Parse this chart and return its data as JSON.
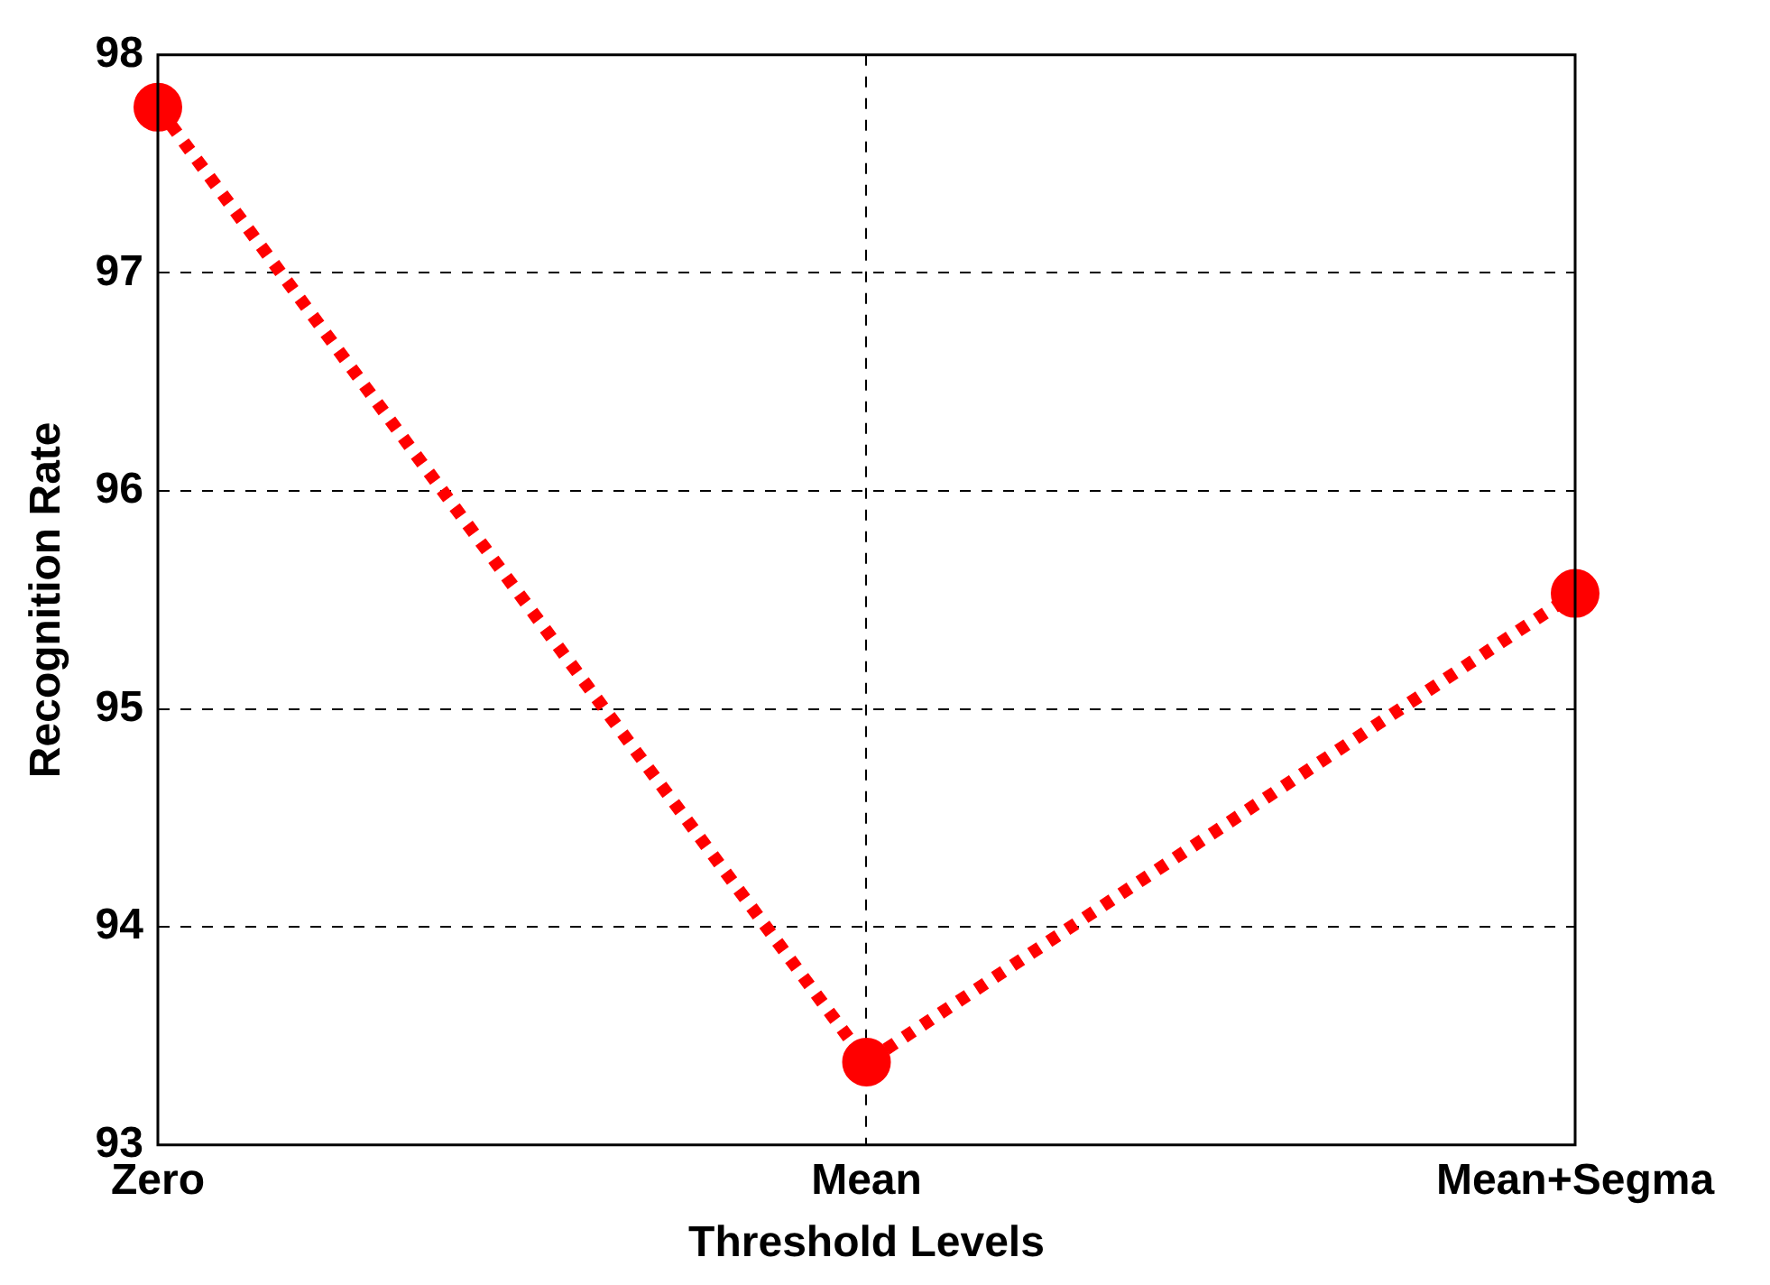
{
  "chart_data": {
    "type": "line",
    "xlabel": "Threshold Levels",
    "ylabel": "Recognition Rate",
    "categories": [
      "Zero",
      "Mean",
      "Mean+Segma"
    ],
    "series": [
      {
        "color": "#ff0000",
        "values": [
          97.76,
          93.38,
          95.53
        ]
      }
    ],
    "ylim": [
      93,
      98
    ],
    "yticks": [
      93,
      94,
      95,
      96,
      97,
      98
    ],
    "grid": true,
    "legend": false,
    "marker": "circle",
    "line_style": "dotted"
  }
}
